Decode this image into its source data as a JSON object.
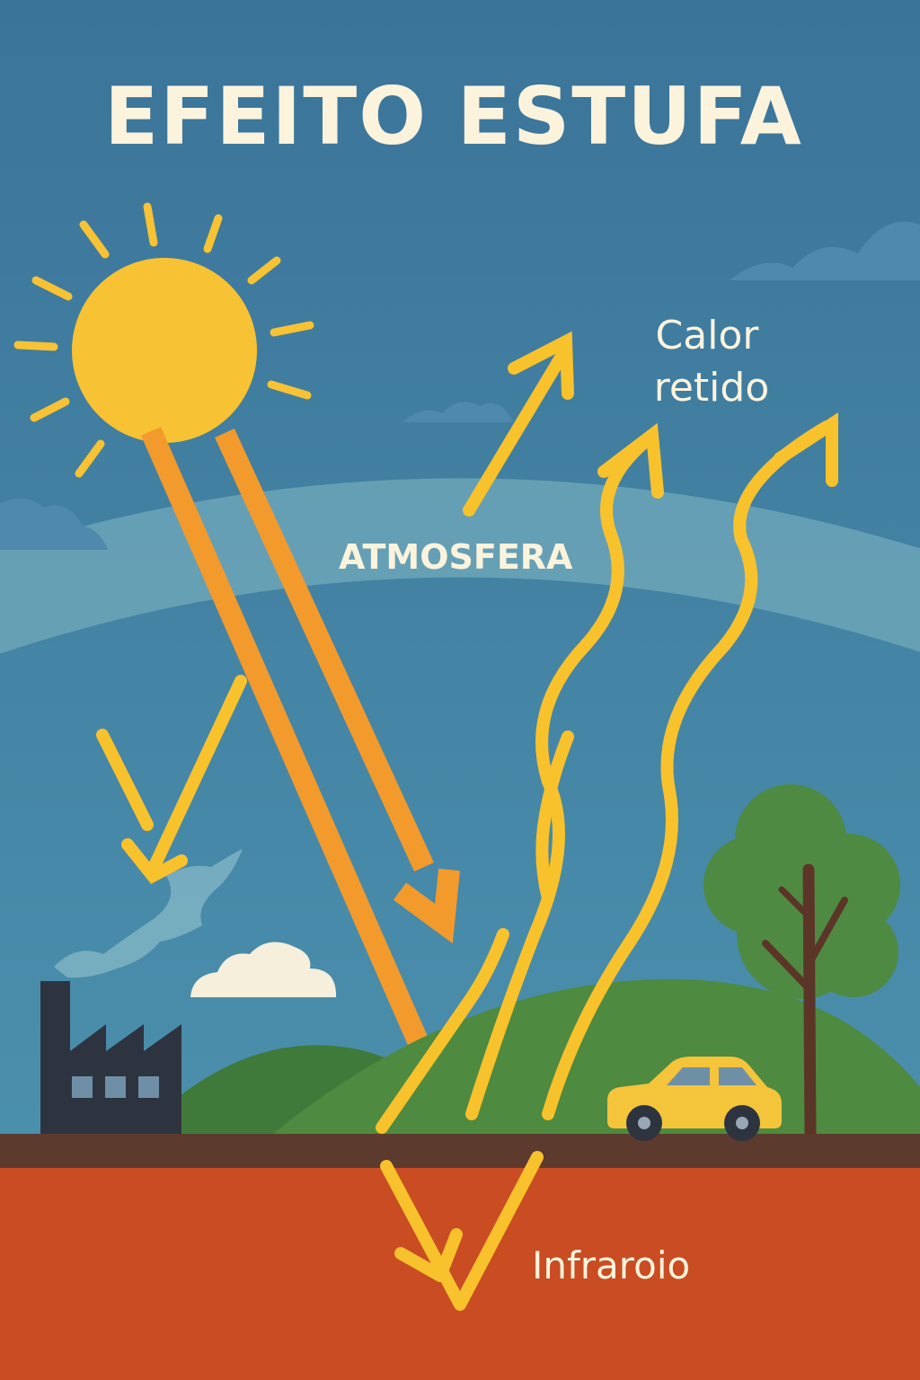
{
  "title": "EFEITO ESTUFA",
  "labels": {
    "atmosphere": "ATMOSFERA",
    "heat_line1": "Calor",
    "heat_line2": "retido",
    "infrared": "Infraroio"
  },
  "colors": {
    "sky_top": "#3b7499",
    "sky_bottom": "#4b90ad",
    "atmosphere_band": "#72a9bb",
    "sun": "#f7c233",
    "sun_ray_orange": "#f39a2c",
    "heat_wave_yellow": "#f8c22d",
    "title_text": "#fbf3dc",
    "hill_green": "#4e8a3f",
    "ground_brown": "#5c3a2e",
    "earth_red": "#c94c22",
    "factory": "#2d3440",
    "car": "#f4c43a",
    "tree_leaves": "#4f8a43",
    "tree_trunk": "#5b3628",
    "cloud": "#f5efdc",
    "smoke": "#7fb3c3"
  },
  "icons": [
    "sun-icon",
    "cloud-icon",
    "factory-icon",
    "car-icon",
    "tree-icon",
    "smoke-icon"
  ]
}
